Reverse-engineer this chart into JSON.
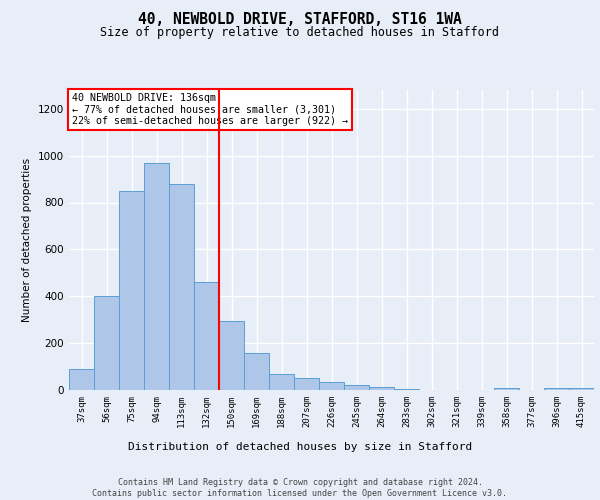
{
  "title1": "40, NEWBOLD DRIVE, STAFFORD, ST16 1WA",
  "title2": "Size of property relative to detached houses in Stafford",
  "xlabel": "Distribution of detached houses by size in Stafford",
  "ylabel": "Number of detached properties",
  "categories": [
    "37sqm",
    "56sqm",
    "75sqm",
    "94sqm",
    "113sqm",
    "132sqm",
    "150sqm",
    "169sqm",
    "188sqm",
    "207sqm",
    "226sqm",
    "245sqm",
    "264sqm",
    "283sqm",
    "302sqm",
    "321sqm",
    "339sqm",
    "358sqm",
    "377sqm",
    "396sqm",
    "415sqm"
  ],
  "values": [
    90,
    400,
    850,
    970,
    880,
    460,
    295,
    160,
    70,
    50,
    35,
    20,
    12,
    5,
    2,
    1,
    1,
    10,
    1,
    10,
    10
  ],
  "bar_color": "#aec6e8",
  "bar_edge_color": "#5a9fd4",
  "vline_x_index": 5,
  "vline_color": "red",
  "annotation_text": "40 NEWBOLD DRIVE: 136sqm\n← 77% of detached houses are smaller (3,301)\n22% of semi-detached houses are larger (922) →",
  "annotation_box_color": "white",
  "annotation_box_edge_color": "red",
  "ylim": [
    0,
    1280
  ],
  "yticks": [
    0,
    200,
    400,
    600,
    800,
    1000,
    1200
  ],
  "footer_text": "Contains HM Land Registry data © Crown copyright and database right 2024.\nContains public sector information licensed under the Open Government Licence v3.0.",
  "background_color": "#e8eef7",
  "grid_color": "white"
}
